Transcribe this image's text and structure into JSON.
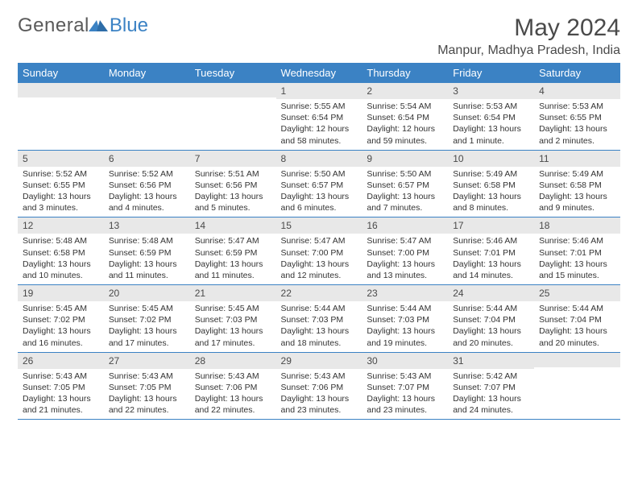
{
  "logo": {
    "general": "General",
    "blue": "Blue"
  },
  "title": "May 2024",
  "location": "Manpur, Madhya Pradesh, India",
  "colors": {
    "header_bg": "#3b82c4",
    "header_text": "#ffffff",
    "daynum_bg": "#e8e8e8",
    "text": "#333333",
    "border": "#3b82c4"
  },
  "weekdays": [
    "Sunday",
    "Monday",
    "Tuesday",
    "Wednesday",
    "Thursday",
    "Friday",
    "Saturday"
  ],
  "weeks": [
    [
      {
        "n": "",
        "l1": "",
        "l2": "",
        "l3": "",
        "l4": ""
      },
      {
        "n": "",
        "l1": "",
        "l2": "",
        "l3": "",
        "l4": ""
      },
      {
        "n": "",
        "l1": "",
        "l2": "",
        "l3": "",
        "l4": ""
      },
      {
        "n": "1",
        "l1": "Sunrise: 5:55 AM",
        "l2": "Sunset: 6:54 PM",
        "l3": "Daylight: 12 hours",
        "l4": "and 58 minutes."
      },
      {
        "n": "2",
        "l1": "Sunrise: 5:54 AM",
        "l2": "Sunset: 6:54 PM",
        "l3": "Daylight: 12 hours",
        "l4": "and 59 minutes."
      },
      {
        "n": "3",
        "l1": "Sunrise: 5:53 AM",
        "l2": "Sunset: 6:54 PM",
        "l3": "Daylight: 13 hours",
        "l4": "and 1 minute."
      },
      {
        "n": "4",
        "l1": "Sunrise: 5:53 AM",
        "l2": "Sunset: 6:55 PM",
        "l3": "Daylight: 13 hours",
        "l4": "and 2 minutes."
      }
    ],
    [
      {
        "n": "5",
        "l1": "Sunrise: 5:52 AM",
        "l2": "Sunset: 6:55 PM",
        "l3": "Daylight: 13 hours",
        "l4": "and 3 minutes."
      },
      {
        "n": "6",
        "l1": "Sunrise: 5:52 AM",
        "l2": "Sunset: 6:56 PM",
        "l3": "Daylight: 13 hours",
        "l4": "and 4 minutes."
      },
      {
        "n": "7",
        "l1": "Sunrise: 5:51 AM",
        "l2": "Sunset: 6:56 PM",
        "l3": "Daylight: 13 hours",
        "l4": "and 5 minutes."
      },
      {
        "n": "8",
        "l1": "Sunrise: 5:50 AM",
        "l2": "Sunset: 6:57 PM",
        "l3": "Daylight: 13 hours",
        "l4": "and 6 minutes."
      },
      {
        "n": "9",
        "l1": "Sunrise: 5:50 AM",
        "l2": "Sunset: 6:57 PM",
        "l3": "Daylight: 13 hours",
        "l4": "and 7 minutes."
      },
      {
        "n": "10",
        "l1": "Sunrise: 5:49 AM",
        "l2": "Sunset: 6:58 PM",
        "l3": "Daylight: 13 hours",
        "l4": "and 8 minutes."
      },
      {
        "n": "11",
        "l1": "Sunrise: 5:49 AM",
        "l2": "Sunset: 6:58 PM",
        "l3": "Daylight: 13 hours",
        "l4": "and 9 minutes."
      }
    ],
    [
      {
        "n": "12",
        "l1": "Sunrise: 5:48 AM",
        "l2": "Sunset: 6:58 PM",
        "l3": "Daylight: 13 hours",
        "l4": "and 10 minutes."
      },
      {
        "n": "13",
        "l1": "Sunrise: 5:48 AM",
        "l2": "Sunset: 6:59 PM",
        "l3": "Daylight: 13 hours",
        "l4": "and 11 minutes."
      },
      {
        "n": "14",
        "l1": "Sunrise: 5:47 AM",
        "l2": "Sunset: 6:59 PM",
        "l3": "Daylight: 13 hours",
        "l4": "and 11 minutes."
      },
      {
        "n": "15",
        "l1": "Sunrise: 5:47 AM",
        "l2": "Sunset: 7:00 PM",
        "l3": "Daylight: 13 hours",
        "l4": "and 12 minutes."
      },
      {
        "n": "16",
        "l1": "Sunrise: 5:47 AM",
        "l2": "Sunset: 7:00 PM",
        "l3": "Daylight: 13 hours",
        "l4": "and 13 minutes."
      },
      {
        "n": "17",
        "l1": "Sunrise: 5:46 AM",
        "l2": "Sunset: 7:01 PM",
        "l3": "Daylight: 13 hours",
        "l4": "and 14 minutes."
      },
      {
        "n": "18",
        "l1": "Sunrise: 5:46 AM",
        "l2": "Sunset: 7:01 PM",
        "l3": "Daylight: 13 hours",
        "l4": "and 15 minutes."
      }
    ],
    [
      {
        "n": "19",
        "l1": "Sunrise: 5:45 AM",
        "l2": "Sunset: 7:02 PM",
        "l3": "Daylight: 13 hours",
        "l4": "and 16 minutes."
      },
      {
        "n": "20",
        "l1": "Sunrise: 5:45 AM",
        "l2": "Sunset: 7:02 PM",
        "l3": "Daylight: 13 hours",
        "l4": "and 17 minutes."
      },
      {
        "n": "21",
        "l1": "Sunrise: 5:45 AM",
        "l2": "Sunset: 7:03 PM",
        "l3": "Daylight: 13 hours",
        "l4": "and 17 minutes."
      },
      {
        "n": "22",
        "l1": "Sunrise: 5:44 AM",
        "l2": "Sunset: 7:03 PM",
        "l3": "Daylight: 13 hours",
        "l4": "and 18 minutes."
      },
      {
        "n": "23",
        "l1": "Sunrise: 5:44 AM",
        "l2": "Sunset: 7:03 PM",
        "l3": "Daylight: 13 hours",
        "l4": "and 19 minutes."
      },
      {
        "n": "24",
        "l1": "Sunrise: 5:44 AM",
        "l2": "Sunset: 7:04 PM",
        "l3": "Daylight: 13 hours",
        "l4": "and 20 minutes."
      },
      {
        "n": "25",
        "l1": "Sunrise: 5:44 AM",
        "l2": "Sunset: 7:04 PM",
        "l3": "Daylight: 13 hours",
        "l4": "and 20 minutes."
      }
    ],
    [
      {
        "n": "26",
        "l1": "Sunrise: 5:43 AM",
        "l2": "Sunset: 7:05 PM",
        "l3": "Daylight: 13 hours",
        "l4": "and 21 minutes."
      },
      {
        "n": "27",
        "l1": "Sunrise: 5:43 AM",
        "l2": "Sunset: 7:05 PM",
        "l3": "Daylight: 13 hours",
        "l4": "and 22 minutes."
      },
      {
        "n": "28",
        "l1": "Sunrise: 5:43 AM",
        "l2": "Sunset: 7:06 PM",
        "l3": "Daylight: 13 hours",
        "l4": "and 22 minutes."
      },
      {
        "n": "29",
        "l1": "Sunrise: 5:43 AM",
        "l2": "Sunset: 7:06 PM",
        "l3": "Daylight: 13 hours",
        "l4": "and 23 minutes."
      },
      {
        "n": "30",
        "l1": "Sunrise: 5:43 AM",
        "l2": "Sunset: 7:07 PM",
        "l3": "Daylight: 13 hours",
        "l4": "and 23 minutes."
      },
      {
        "n": "31",
        "l1": "Sunrise: 5:42 AM",
        "l2": "Sunset: 7:07 PM",
        "l3": "Daylight: 13 hours",
        "l4": "and 24 minutes."
      },
      {
        "n": "",
        "l1": "",
        "l2": "",
        "l3": "",
        "l4": ""
      }
    ]
  ]
}
